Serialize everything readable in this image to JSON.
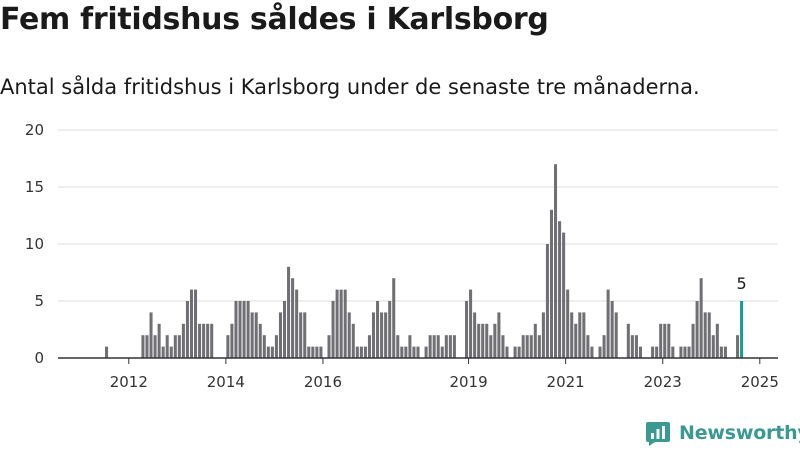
{
  "title": "Fem fritidshus såldes i Karlsborg",
  "subtitle": "Antal sålda fritidshus i Karlsborg under de senaste tre månaderna.",
  "brand": {
    "name": "Newsworthy",
    "color": "#3a9a92"
  },
  "colors": {
    "bar": "#707074",
    "highlight": "#1a9a90",
    "grid": "#dddddd",
    "baseline": "#333333"
  },
  "chart_data": {
    "type": "bar",
    "x_start": "2011-01",
    "x_end": "2025-11",
    "ylim": [
      0,
      20
    ],
    "y_ticks": [
      0,
      5,
      10,
      15,
      20
    ],
    "x_ticks": [
      "2012",
      "2014",
      "2016",
      "2019",
      "2021",
      "2023",
      "2025"
    ],
    "grid": true,
    "highlight_label": "5",
    "x": [
      "2012-01",
      "2012-02",
      "2012-03",
      "2012-04",
      "2012-05",
      "2012-06",
      "2012-07",
      "2012-08",
      "2012-09",
      "2012-10",
      "2012-11",
      "2012-12",
      "2013-01",
      "2013-02",
      "2013-03",
      "2013-04",
      "2013-05",
      "2013-06",
      "2013-07",
      "2013-08",
      "2013-09",
      "2013-10",
      "2013-11",
      "2013-12",
      "2014-01",
      "2014-02",
      "2014-03",
      "2014-04",
      "2014-05",
      "2014-06",
      "2014-07",
      "2014-08",
      "2014-09",
      "2014-10",
      "2014-11",
      "2014-12",
      "2015-01",
      "2015-02",
      "2015-03",
      "2015-04",
      "2015-05",
      "2015-06",
      "2015-07",
      "2015-08",
      "2015-09",
      "2015-10",
      "2015-11",
      "2015-12",
      "2016-01",
      "2016-02",
      "2016-03",
      "2016-04",
      "2016-05",
      "2016-06",
      "2016-07",
      "2016-08",
      "2016-09",
      "2016-10",
      "2016-11",
      "2016-12",
      "2017-01",
      "2017-02",
      "2017-03",
      "2017-04",
      "2017-05",
      "2017-06",
      "2017-07",
      "2017-08",
      "2017-09",
      "2017-10",
      "2017-11",
      "2017-12",
      "2018-01",
      "2018-02",
      "2018-03",
      "2018-04",
      "2018-05",
      "2018-06",
      "2018-07",
      "2018-08",
      "2018-09",
      "2018-10",
      "2018-11",
      "2018-12",
      "2019-01",
      "2019-02",
      "2019-03",
      "2019-04",
      "2019-05",
      "2019-06",
      "2019-07",
      "2019-08",
      "2019-09",
      "2019-10",
      "2019-11",
      "2019-12",
      "2020-01",
      "2020-02",
      "2020-03",
      "2020-04",
      "2020-05",
      "2020-06",
      "2020-07",
      "2020-08",
      "2020-09",
      "2020-10",
      "2020-11",
      "2020-12",
      "2021-01",
      "2021-02",
      "2021-03",
      "2021-04",
      "2021-05",
      "2021-06",
      "2021-07",
      "2021-08",
      "2021-09",
      "2021-10",
      "2021-11",
      "2021-12",
      "2022-01",
      "2022-02",
      "2022-03",
      "2022-04",
      "2022-05",
      "2022-06",
      "2022-07",
      "2022-08",
      "2022-09",
      "2022-10",
      "2022-11",
      "2022-12",
      "2023-01",
      "2023-02",
      "2023-03",
      "2023-04",
      "2023-05",
      "2023-06",
      "2023-07",
      "2023-08",
      "2023-09",
      "2023-10",
      "2023-11",
      "2023-12",
      "2024-01",
      "2024-02",
      "2024-03",
      "2024-04",
      "2024-05",
      "2024-06",
      "2024-07",
      "2024-08",
      "2024-09",
      "2024-10",
      "2024-11",
      "2024-12",
      "2025-01",
      "2025-02",
      "2025-03",
      "2025-04"
    ],
    "values": [
      1,
      0,
      0,
      0,
      0,
      0,
      0,
      0,
      0,
      2,
      2,
      4,
      2,
      3,
      1,
      2,
      1,
      2,
      2,
      3,
      5,
      6,
      6,
      3,
      3,
      3,
      3,
      0,
      0,
      0,
      2,
      3,
      5,
      5,
      5,
      5,
      4,
      4,
      3,
      2,
      1,
      1,
      2,
      4,
      5,
      8,
      7,
      6,
      4,
      4,
      1,
      1,
      1,
      1,
      0,
      2,
      5,
      6,
      6,
      6,
      4,
      3,
      1,
      1,
      1,
      2,
      4,
      5,
      4,
      4,
      5,
      7,
      2,
      1,
      1,
      2,
      1,
      1,
      0,
      1,
      2,
      2,
      2,
      1,
      2,
      2,
      2,
      0,
      0,
      5,
      6,
      4,
      3,
      3,
      3,
      2,
      3,
      4,
      2,
      1,
      0,
      1,
      1,
      2,
      2,
      2,
      3,
      2,
      4,
      10,
      13,
      17,
      12,
      11,
      6,
      4,
      3,
      4,
      4,
      2,
      1,
      0,
      1,
      2,
      6,
      5,
      4,
      0,
      0,
      3,
      2,
      2,
      1,
      0,
      0,
      1,
      1,
      3,
      3,
      3,
      1,
      0,
      1,
      1,
      1,
      3,
      5,
      7,
      4,
      4,
      2,
      3,
      1,
      1,
      0,
      0,
      2,
      5,
      0,
      0
    ],
    "highlight_index": 157
  }
}
